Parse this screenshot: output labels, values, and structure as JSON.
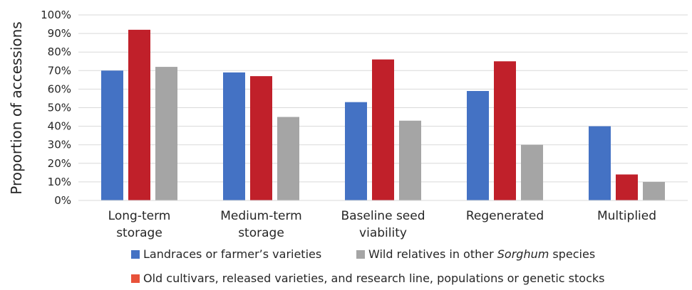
{
  "chart_data": {
    "type": "bar",
    "ylabel": "Proportion of accessions",
    "ylim": [
      0,
      100
    ],
    "yticks": [
      "0%",
      "10%",
      "20%",
      "30%",
      "40%",
      "50%",
      "60%",
      "70%",
      "80%",
      "90%",
      "100%"
    ],
    "categories": [
      [
        "Long-term",
        "storage"
      ],
      [
        "Medium-term",
        "storage"
      ],
      [
        "Baseline seed",
        "viability"
      ],
      [
        "Regenerated"
      ],
      [
        "Multiplied"
      ]
    ],
    "series": [
      {
        "name": "Landraces or farmer’s varieties",
        "color": "#4472c4",
        "values": [
          70,
          69,
          53,
          59,
          40
        ]
      },
      {
        "name": "Old cultivars, released varieties, and research line, populations or genetic stocks",
        "color": "#c0202a",
        "values": [
          92,
          67,
          76,
          75,
          14
        ]
      },
      {
        "name_parts": [
          "Wild relatives in other ",
          "Sorghum",
          " species"
        ],
        "color": "#a5a5a5",
        "values": [
          72,
          45,
          43,
          30,
          10
        ]
      }
    ],
    "grid": true,
    "legend": "bottom"
  }
}
